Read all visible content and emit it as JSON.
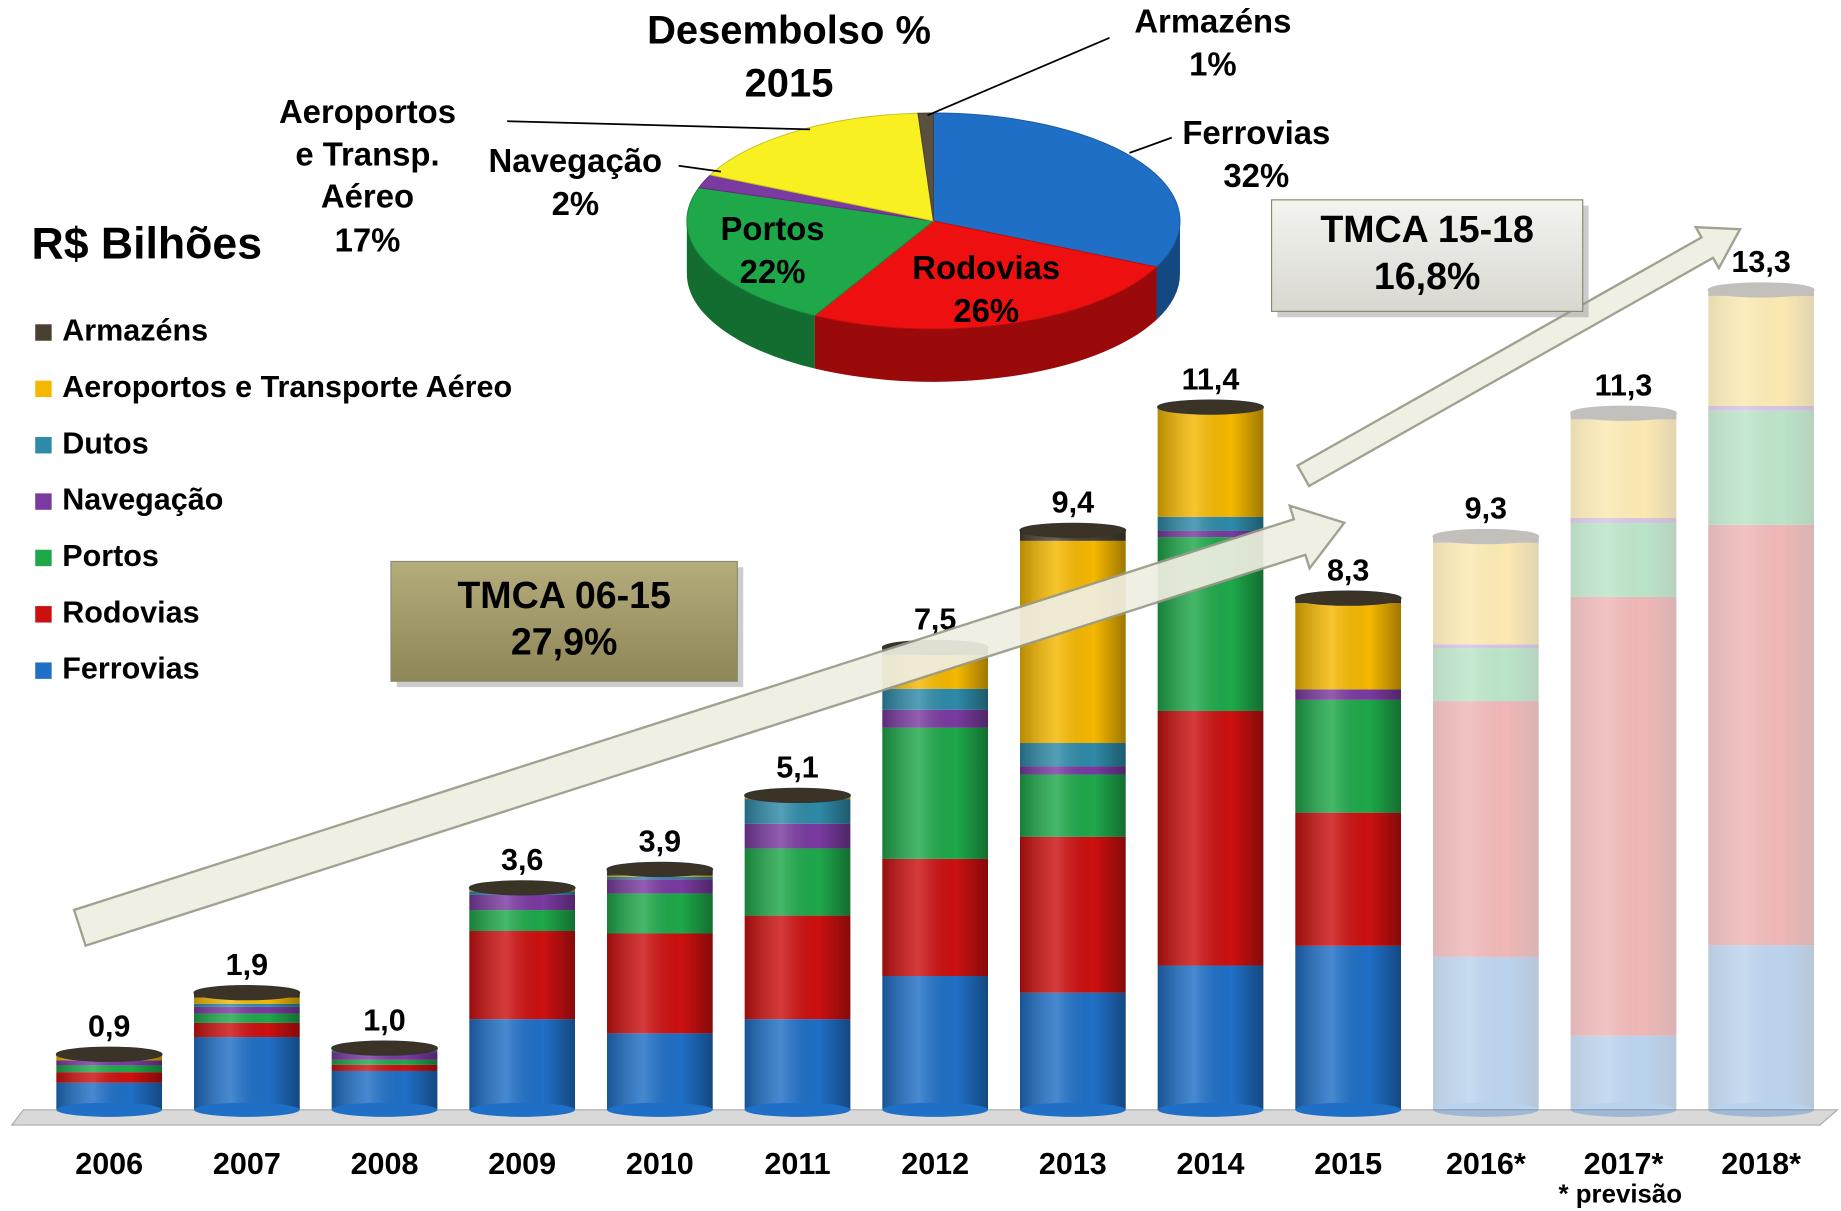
{
  "chart_data": [
    {
      "type": "bar",
      "stacked": true,
      "ylabel": "R$ Bilhões",
      "categories": [
        "2006",
        "2007",
        "2008",
        "2009",
        "2010",
        "2011",
        "2012",
        "2013",
        "2014",
        "2015",
        "2016*",
        "2017*",
        "2018*"
      ],
      "series": [
        {
          "name": "Ferrovias",
          "color": "#1f6fc6",
          "values": [
            0.44,
            1.18,
            0.63,
            1.47,
            1.24,
            1.47,
            2.17,
            1.9,
            2.34,
            2.66,
            2.48,
            1.2,
            2.67
          ]
        },
        {
          "name": "Rodovias",
          "color": "#cc1010",
          "values": [
            0.17,
            0.23,
            0.1,
            1.43,
            1.62,
            1.68,
            1.9,
            2.53,
            4.13,
            2.16,
            4.15,
            7.12,
            6.82
          ]
        },
        {
          "name": "Portos",
          "color": "#1ea84a",
          "values": [
            0.11,
            0.15,
            0.08,
            0.34,
            0.65,
            1.09,
            2.13,
            1.01,
            2.82,
            1.83,
            0.86,
            1.2,
            1.85
          ]
        },
        {
          "name": "Navegação",
          "color": "#7a3aa0",
          "values": [
            0.08,
            0.11,
            0.12,
            0.25,
            0.23,
            0.4,
            0.29,
            0.13,
            0.1,
            0.17,
            0.06,
            0.08,
            0.08
          ]
        },
        {
          "name": "Dutos",
          "color": "#2e8aa8",
          "values": [
            0,
            0.05,
            0.03,
            0.05,
            0.04,
            0.4,
            0.34,
            0.38,
            0.23,
            0,
            0,
            0,
            0
          ]
        },
        {
          "name": "Aeroportos e Transporte Aéreo",
          "color": "#f5b800",
          "values": [
            0.07,
            0.1,
            0.02,
            0.03,
            0.02,
            0.03,
            0.55,
            3.28,
            1.75,
            1.4,
            1.65,
            1.6,
            1.78
          ]
        },
        {
          "name": "Armazéns",
          "color": "#4a4030",
          "values": [
            0.03,
            0.08,
            0.02,
            0.03,
            0.1,
            0.03,
            0.12,
            0.17,
            0.03,
            0.08,
            0.1,
            0.1,
            0.1
          ]
        }
      ],
      "totals": [
        0.9,
        1.9,
        1.0,
        3.6,
        3.9,
        5.1,
        7.5,
        9.4,
        11.4,
        8.3,
        9.3,
        11.3,
        13.3
      ],
      "total_labels": [
        "0,9",
        "1,9",
        "1,0",
        "3,6",
        "3,9",
        "5,1",
        "7,5",
        "9,4",
        "11,4",
        "8,3",
        "9,3",
        "11,3",
        "13,3"
      ],
      "ylim": [
        0,
        14
      ],
      "legend": "left",
      "annotations": [
        {
          "lines": [
            "TMCA 06-15",
            "27,9%"
          ]
        },
        {
          "lines": [
            "TMCA 15-18",
            "16,8%"
          ]
        }
      ],
      "footnote": "* previsão"
    },
    {
      "type": "pie",
      "title": "Desembolso %",
      "subtitle": "2015",
      "categories": [
        "Ferrovias",
        "Rodovias",
        "Portos",
        "Navegação",
        "Aeroportos e Transp. Aéreo",
        "Armazéns"
      ],
      "values": [
        32,
        26,
        22,
        2,
        17,
        1
      ],
      "value_labels": [
        "32%",
        "26%",
        "22%",
        "2%",
        "17%",
        "1%"
      ],
      "colors": [
        "#1f6fc6",
        "#ee1010",
        "#1ea84a",
        "#7a3aa0",
        "#f8f020",
        "#5a5040"
      ]
    }
  ]
}
